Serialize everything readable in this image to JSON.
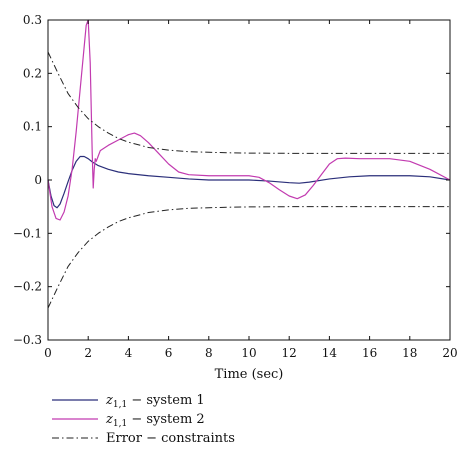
{
  "chart_data": {
    "type": "line",
    "xlabel": "Time (sec)",
    "ylabel": "",
    "title": "",
    "xlim": [
      0,
      20
    ],
    "ylim": [
      -0.3,
      0.3
    ],
    "xticks": [
      0,
      2,
      4,
      6,
      8,
      10,
      12,
      14,
      16,
      18,
      20
    ],
    "yticks": [
      -0.3,
      -0.2,
      -0.1,
      0,
      0.1,
      0.2,
      0.3
    ],
    "xtick_labels": [
      "0",
      "2",
      "4",
      "6",
      "8",
      "10",
      "12",
      "14",
      "16",
      "18",
      "20"
    ],
    "ytick_labels": [
      "−0.3",
      "−0.2",
      "−0.1",
      "0",
      "0.1",
      "0.2",
      "0.3"
    ],
    "grid": false,
    "legend_placement": "below",
    "series": [
      {
        "name": "z1,1 − system 1",
        "legend_main": "z",
        "legend_sub": "1,1",
        "legend_rest": " − system 1",
        "color": "#2b2f7a",
        "style": "solid",
        "x": [
          0,
          0.15,
          0.3,
          0.45,
          0.6,
          0.8,
          1.0,
          1.2,
          1.4,
          1.6,
          1.8,
          2.0,
          2.2,
          2.5,
          3.0,
          3.5,
          4.0,
          5.0,
          6.0,
          7.0,
          8.0,
          9.0,
          10.0,
          11.0,
          12.0,
          12.5,
          13.0,
          14.0,
          15.0,
          16.0,
          17.0,
          18.0,
          19.0,
          20.0
        ],
        "y": [
          0.0,
          -0.03,
          -0.048,
          -0.052,
          -0.045,
          -0.025,
          -0.003,
          0.018,
          0.035,
          0.044,
          0.044,
          0.04,
          0.034,
          0.027,
          0.02,
          0.015,
          0.012,
          0.008,
          0.005,
          0.002,
          0.0,
          0.0,
          0.0,
          -0.002,
          -0.005,
          -0.006,
          -0.004,
          0.002,
          0.006,
          0.008,
          0.008,
          0.008,
          0.006,
          0.0
        ]
      },
      {
        "name": "z1,1 − system 2",
        "legend_main": "z",
        "legend_sub": "1,1",
        "legend_rest": " − system 2",
        "color": "#c23bb0",
        "style": "solid",
        "x": [
          0,
          0.2,
          0.4,
          0.6,
          0.8,
          1.0,
          1.2,
          1.4,
          1.6,
          1.8,
          1.9,
          2.0,
          2.1,
          2.2,
          2.25,
          2.3,
          2.35,
          2.4,
          2.5,
          2.6,
          2.8,
          3.0,
          3.5,
          4.0,
          4.3,
          4.6,
          5.0,
          5.5,
          6.0,
          6.5,
          7.0,
          8.0,
          9.0,
          10.0,
          10.5,
          11.0,
          11.5,
          12.0,
          12.4,
          12.8,
          13.2,
          13.6,
          14.0,
          14.4,
          14.8,
          15.5,
          16.0,
          17.0,
          18.0,
          19.0,
          20.0
        ],
        "y": [
          0.0,
          -0.05,
          -0.072,
          -0.075,
          -0.06,
          -0.03,
          0.02,
          0.09,
          0.17,
          0.25,
          0.29,
          0.3,
          0.22,
          0.05,
          -0.015,
          0.02,
          0.04,
          0.035,
          0.045,
          0.055,
          0.06,
          0.065,
          0.075,
          0.085,
          0.088,
          0.083,
          0.07,
          0.05,
          0.03,
          0.015,
          0.01,
          0.008,
          0.008,
          0.008,
          0.005,
          -0.005,
          -0.018,
          -0.03,
          -0.035,
          -0.028,
          -0.01,
          0.01,
          0.03,
          0.04,
          0.041,
          0.04,
          0.04,
          0.04,
          0.035,
          0.02,
          0.0
        ]
      },
      {
        "name": "Error − constraints",
        "legend_main": "Error − constraints",
        "legend_sub": "",
        "legend_rest": "",
        "color": "#222222",
        "style": "dashdot",
        "x": [
          0,
          0.5,
          1,
          1.5,
          2,
          2.5,
          3,
          3.5,
          4,
          5,
          6,
          7,
          8,
          9,
          10,
          12,
          14,
          16,
          18,
          20
        ],
        "y": [
          0.24,
          0.2,
          0.162,
          0.136,
          0.115,
          0.1,
          0.088,
          0.078,
          0.071,
          0.061,
          0.056,
          0.053,
          0.052,
          0.051,
          0.0505,
          0.05,
          0.05,
          0.05,
          0.05,
          0.05
        ]
      },
      {
        "name": "",
        "color": "#222222",
        "style": "dashdot",
        "x": [
          0,
          0.5,
          1,
          1.5,
          2,
          2.5,
          3,
          3.5,
          4,
          5,
          6,
          7,
          8,
          9,
          10,
          12,
          14,
          16,
          18,
          20
        ],
        "y": [
          -0.24,
          -0.2,
          -0.162,
          -0.136,
          -0.115,
          -0.1,
          -0.088,
          -0.078,
          -0.071,
          -0.061,
          -0.056,
          -0.053,
          -0.052,
          -0.051,
          -0.0505,
          -0.05,
          -0.05,
          -0.05,
          -0.05,
          -0.05
        ]
      }
    ]
  }
}
